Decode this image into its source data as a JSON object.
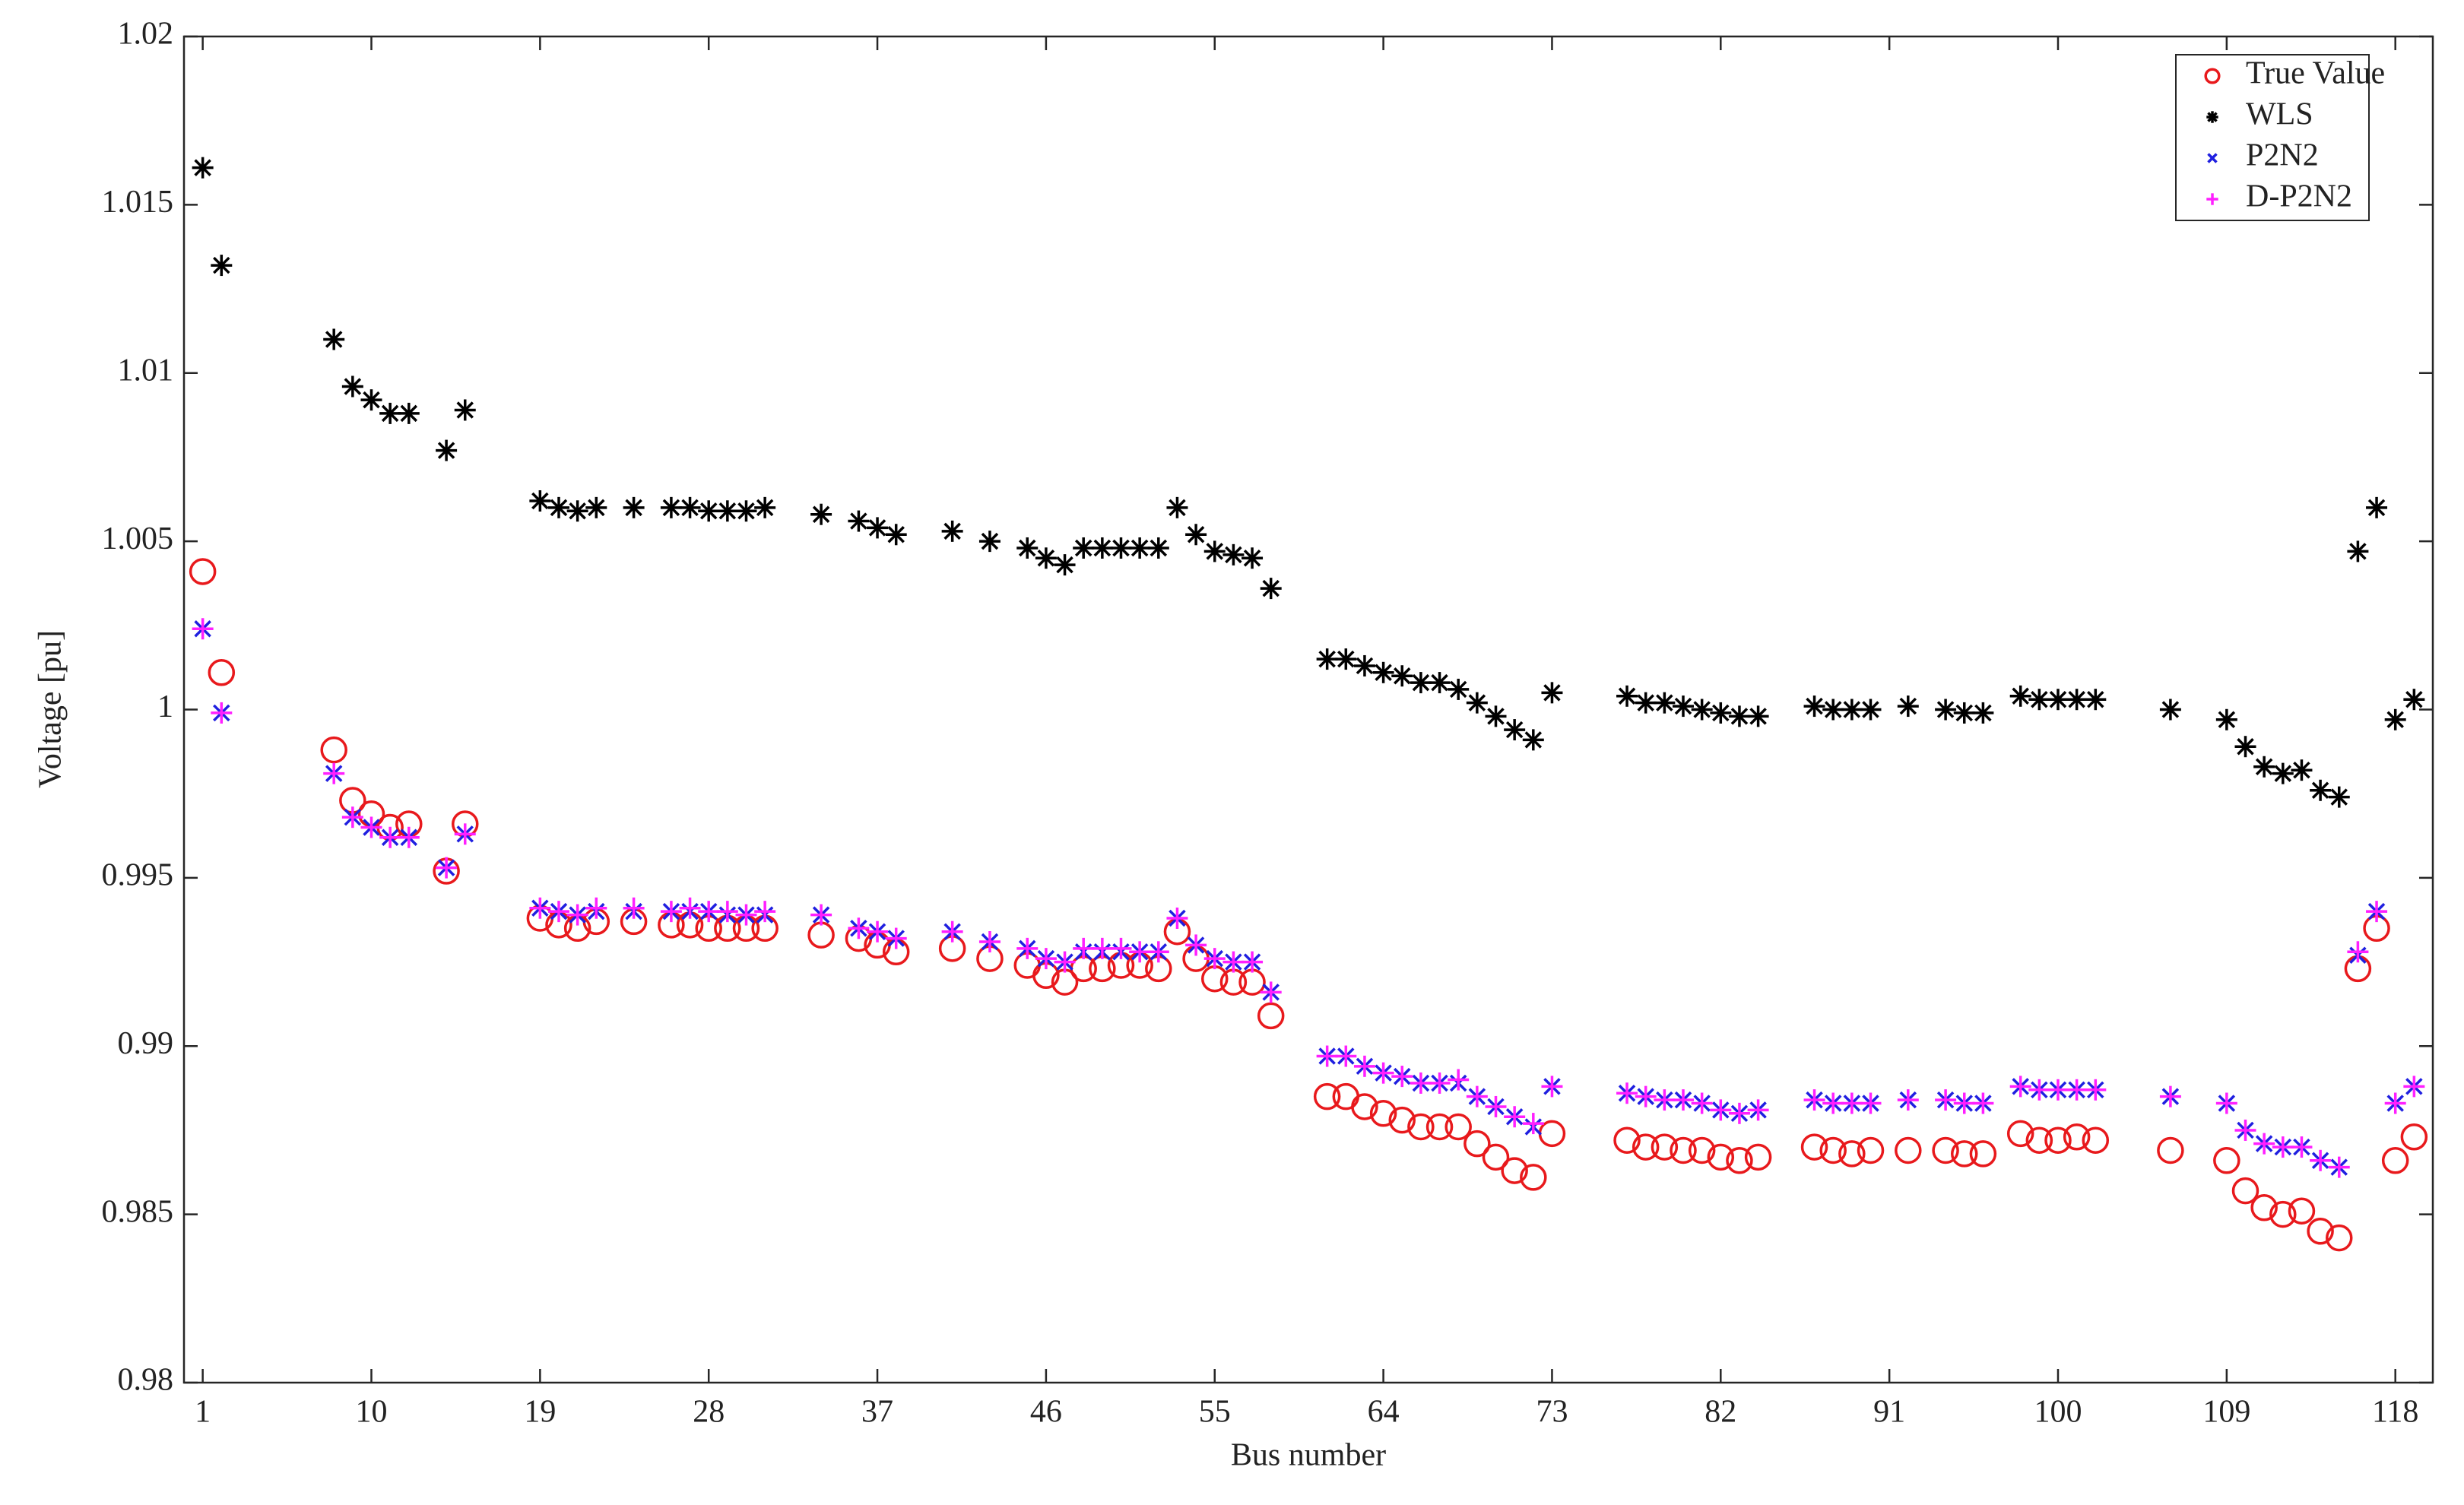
{
  "chart_data": {
    "type": "scatter",
    "x_label": "Bus number",
    "y_label": "Voltage [pu]",
    "xlim": [
      0,
      120
    ],
    "ylim": [
      0.98,
      1.02
    ],
    "xticks": [
      1,
      10,
      19,
      28,
      37,
      46,
      55,
      64,
      73,
      82,
      91,
      100,
      109,
      118
    ],
    "yticks": [
      0.98,
      0.985,
      0.99,
      0.995,
      1,
      1.005,
      1.01,
      1.015,
      1.02
    ],
    "legend": "upper right",
    "x": [
      1,
      2,
      8,
      9,
      10,
      11,
      12,
      14,
      15,
      19,
      20,
      21,
      22,
      24,
      26,
      27,
      28,
      29,
      30,
      31,
      34,
      36,
      37,
      38,
      41,
      43,
      45,
      46,
      47,
      48,
      49,
      50,
      51,
      52,
      53,
      54,
      55,
      56,
      57,
      58,
      61,
      62,
      63,
      64,
      65,
      66,
      67,
      68,
      69,
      70,
      71,
      72,
      73,
      77,
      78,
      79,
      80,
      81,
      82,
      83,
      84,
      87,
      88,
      89,
      90,
      92,
      94,
      95,
      96,
      98,
      99,
      100,
      101,
      102,
      106,
      109,
      110,
      111,
      112,
      113,
      114,
      115,
      116,
      117,
      118,
      119
    ],
    "series": [
      {
        "name": "True Value",
        "color": "#e8191c",
        "marker": "o",
        "values": [
          1.0041,
          1.0011,
          0.9988,
          0.9973,
          0.9969,
          0.9965,
          0.9966,
          0.9952,
          0.9966,
          0.9938,
          0.9936,
          0.9935,
          0.9937,
          0.9937,
          0.9936,
          0.9936,
          0.9935,
          0.9935,
          0.9935,
          0.9935,
          0.9933,
          0.9932,
          0.993,
          0.9928,
          0.9929,
          0.9926,
          0.9924,
          0.9921,
          0.9919,
          0.9923,
          0.9923,
          0.9924,
          0.9924,
          0.9923,
          0.9934,
          0.9926,
          0.992,
          0.9919,
          0.9919,
          0.9909,
          0.9885,
          0.9885,
          0.9882,
          0.988,
          0.9878,
          0.9876,
          0.9876,
          0.9876,
          0.9871,
          0.9867,
          0.9863,
          0.9861,
          0.9874,
          0.9872,
          0.987,
          0.987,
          0.9869,
          0.9869,
          0.9867,
          0.9866,
          0.9867,
          0.987,
          0.9869,
          0.9868,
          0.9869,
          0.9869,
          0.9869,
          0.9868,
          0.9868,
          0.9874,
          0.9872,
          0.9872,
          0.9873,
          0.9872,
          0.9869,
          0.9866,
          0.9857,
          0.9852,
          0.985,
          0.9851,
          0.9845,
          0.9843,
          0.9923,
          0.9935,
          0.9866,
          0.9873
        ]
      },
      {
        "name": "WLS",
        "color": "#000000",
        "marker": "*",
        "values": [
          1.0161,
          1.0132,
          1.011,
          1.0096,
          1.0092,
          1.0088,
          1.0088,
          1.0077,
          1.0089,
          1.0062,
          1.006,
          1.0059,
          1.006,
          1.006,
          1.006,
          1.006,
          1.0059,
          1.0059,
          1.0059,
          1.006,
          1.0058,
          1.0056,
          1.0054,
          1.0052,
          1.0053,
          1.005,
          1.0048,
          1.0045,
          1.0043,
          1.0048,
          1.0048,
          1.0048,
          1.0048,
          1.0048,
          1.006,
          1.0052,
          1.0047,
          1.0046,
          1.0045,
          1.0036,
          1.0015,
          1.0015,
          1.0013,
          1.0011,
          1.001,
          1.0008,
          1.0008,
          1.0006,
          1.0002,
          0.9998,
          0.9994,
          0.9991,
          1.0005,
          1.0004,
          1.0002,
          1.0002,
          1.0001,
          1.0,
          0.9999,
          0.9998,
          0.9998,
          1.0001,
          1.0,
          1.0,
          1.0,
          1.0001,
          1.0,
          0.9999,
          0.9999,
          1.0004,
          1.0003,
          1.0003,
          1.0003,
          1.0003,
          1.0,
          0.9997,
          0.9989,
          0.9983,
          0.9981,
          0.9982,
          0.9976,
          0.9974,
          1.0047,
          1.006,
          0.9997,
          1.0003
        ]
      },
      {
        "name": "P2N2",
        "color": "#1f1fe0",
        "marker": "x",
        "values": [
          1.0024,
          0.9999,
          0.9981,
          0.9968,
          0.9965,
          0.9962,
          0.9962,
          0.9953,
          0.9963,
          0.9941,
          0.994,
          0.9939,
          0.994,
          0.994,
          0.994,
          0.994,
          0.994,
          0.9939,
          0.9939,
          0.9939,
          0.9939,
          0.9935,
          0.9934,
          0.9932,
          0.9934,
          0.9931,
          0.9929,
          0.9926,
          0.9925,
          0.9928,
          0.9928,
          0.9928,
          0.9928,
          0.9928,
          0.9938,
          0.993,
          0.9926,
          0.9925,
          0.9925,
          0.9916,
          0.9897,
          0.9897,
          0.9894,
          0.9892,
          0.9891,
          0.9889,
          0.9889,
          0.9889,
          0.9885,
          0.9882,
          0.9879,
          0.9876,
          0.9888,
          0.9886,
          0.9885,
          0.9884,
          0.9884,
          0.9883,
          0.9881,
          0.988,
          0.9881,
          0.9884,
          0.9883,
          0.9883,
          0.9883,
          0.9884,
          0.9884,
          0.9883,
          0.9883,
          0.9888,
          0.9887,
          0.9887,
          0.9887,
          0.9887,
          0.9885,
          0.9883,
          0.9875,
          0.9871,
          0.987,
          0.987,
          0.9866,
          0.9864,
          0.9927,
          0.994,
          0.9883,
          0.9888
        ]
      },
      {
        "name": "D-P2N2",
        "color": "#ff1fff",
        "marker": "+",
        "values": [
          1.0024,
          0.9999,
          0.9981,
          0.9968,
          0.9965,
          0.9962,
          0.9962,
          0.9953,
          0.9963,
          0.9941,
          0.994,
          0.9939,
          0.9941,
          0.9941,
          0.994,
          0.9941,
          0.994,
          0.994,
          0.9939,
          0.994,
          0.9939,
          0.9935,
          0.9934,
          0.9932,
          0.9934,
          0.9931,
          0.9929,
          0.9926,
          0.9925,
          0.9929,
          0.9929,
          0.9929,
          0.9928,
          0.9928,
          0.9938,
          0.993,
          0.9926,
          0.9925,
          0.9925,
          0.9916,
          0.9897,
          0.9897,
          0.9894,
          0.9892,
          0.9891,
          0.9889,
          0.9889,
          0.989,
          0.9885,
          0.9882,
          0.9879,
          0.9877,
          0.9888,
          0.9886,
          0.9885,
          0.9884,
          0.9884,
          0.9883,
          0.9881,
          0.988,
          0.9881,
          0.9884,
          0.9883,
          0.9883,
          0.9883,
          0.9884,
          0.9884,
          0.9883,
          0.9883,
          0.9888,
          0.9887,
          0.9887,
          0.9887,
          0.9887,
          0.9885,
          0.9883,
          0.9875,
          0.9871,
          0.987,
          0.987,
          0.9866,
          0.9864,
          0.9928,
          0.994,
          0.9883,
          0.9888
        ]
      }
    ]
  }
}
